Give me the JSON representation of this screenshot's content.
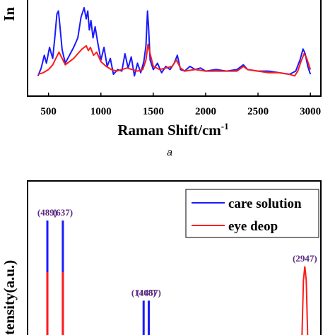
{
  "chart_data": [
    {
      "type": "line",
      "panel": "a",
      "caption": "a",
      "xlabel": "Raman Shift/cm",
      "xlabel_superscript": "-1",
      "ylabel_visible": "In",
      "xlim": [
        300,
        3100
      ],
      "ylim": [
        0,
        100
      ],
      "xticks": [
        500,
        1000,
        1500,
        2000,
        2500,
        3000
      ],
      "grid": false,
      "series": [
        {
          "color": "#1a1aff",
          "x": [
            400,
            430,
            460,
            480,
            510,
            540,
            560,
            580,
            595,
            610,
            630,
            660,
            700,
            740,
            780,
            810,
            840,
            860,
            875,
            890,
            905,
            925,
            945,
            970,
            1000,
            1030,
            1060,
            1090,
            1120,
            1160,
            1200,
            1230,
            1260,
            1290,
            1320,
            1350,
            1380,
            1410,
            1430,
            1445,
            1455,
            1470,
            1500,
            1540,
            1580,
            1620,
            1660,
            1700,
            1730,
            1760,
            1800,
            1850,
            1900,
            1950,
            2000,
            2100,
            2200,
            2300,
            2360,
            2400,
            2500,
            2600,
            2700,
            2800,
            2860,
            2900,
            2930,
            2950,
            2975,
            3000
          ],
          "values": [
            22,
            32,
            48,
            38,
            58,
            44,
            70,
            100,
            104,
            84,
            55,
            38,
            48,
            58,
            70,
            96,
            108,
            94,
            104,
            80,
            92,
            70,
            84,
            64,
            42,
            58,
            34,
            44,
            24,
            30,
            28,
            50,
            32,
            46,
            22,
            38,
            26,
            40,
            60,
            104,
            84,
            42,
            30,
            38,
            26,
            34,
            30,
            38,
            48,
            30,
            28,
            34,
            30,
            32,
            28,
            30,
            28,
            30,
            36,
            30,
            28,
            28,
            26,
            24,
            28,
            42,
            56,
            50,
            34,
            24
          ]
        },
        {
          "color": "#ff1a1a",
          "x": [
            400,
            450,
            500,
            540,
            570,
            600,
            630,
            660,
            700,
            740,
            780,
            820,
            860,
            880,
            900,
            930,
            960,
            1000,
            1050,
            1100,
            1150,
            1200,
            1250,
            1300,
            1350,
            1400,
            1430,
            1450,
            1470,
            1500,
            1560,
            1620,
            1680,
            1720,
            1760,
            1800,
            1900,
            2000,
            2100,
            2200,
            2300,
            2360,
            2400,
            2500,
            2600,
            2700,
            2800,
            2850,
            2880,
            2910,
            2940,
            2960,
            2980,
            3000
          ],
          "values": [
            24,
            26,
            30,
            36,
            44,
            52,
            44,
            36,
            40,
            44,
            50,
            56,
            60,
            54,
            58,
            48,
            52,
            40,
            34,
            30,
            28,
            30,
            32,
            30,
            28,
            30,
            42,
            62,
            50,
            34,
            30,
            32,
            34,
            42,
            32,
            28,
            30,
            28,
            28,
            28,
            28,
            34,
            30,
            28,
            26,
            26,
            24,
            22,
            28,
            40,
            50,
            46,
            38,
            30
          ]
        }
      ]
    },
    {
      "type": "line",
      "panel": "b",
      "ylabel_visible": "tensity(a.u.)",
      "legend_position": "top-right",
      "series": [
        {
          "name": "care solution",
          "color": "#1a1aff",
          "peaks": [
            {
              "label": "(489)",
              "x": 489,
              "height": 100
            },
            {
              "label": "(637)",
              "x": 637,
              "height": 100
            },
            {
              "label": "(1408)",
              "x": 1408,
              "height": 30
            },
            {
              "label": "(1457)",
              "x": 1457,
              "height": 30
            },
            {
              "label": "(2947)",
              "x": 2947,
              "height": 60
            }
          ]
        },
        {
          "name": "eye deop",
          "color": "#ff1a1a"
        }
      ]
    }
  ]
}
